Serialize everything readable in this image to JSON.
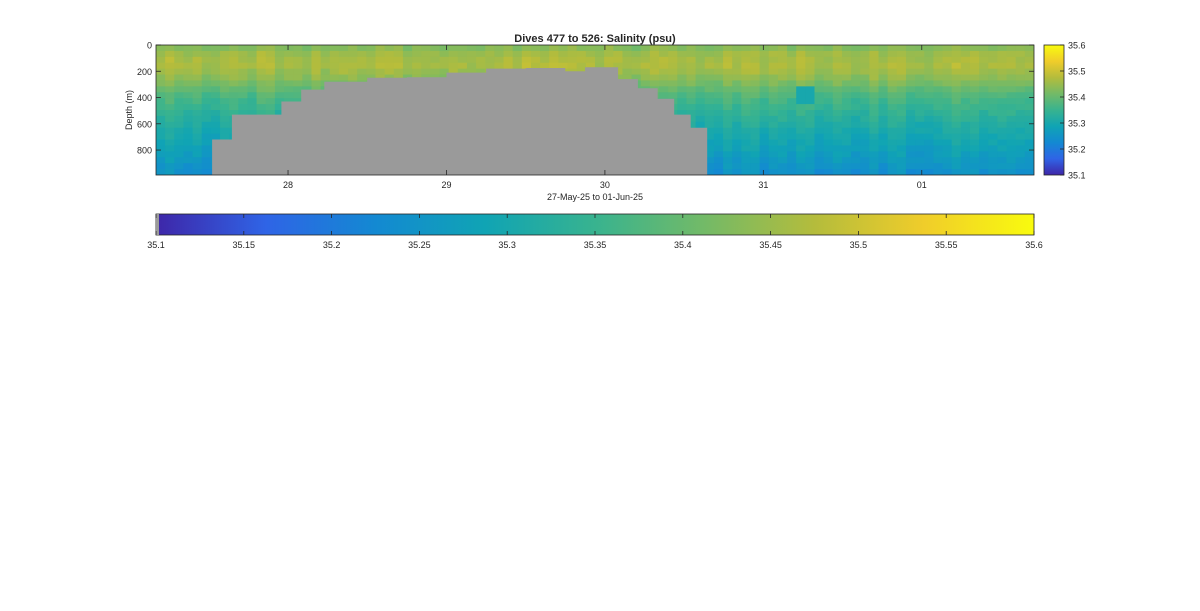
{
  "chart_data": {
    "type": "heatmap",
    "title": "Dives 477 to 526: Salinity (psu)",
    "xlabel": "27-May-25 to 01-Jun-25",
    "ylabel": "Depth (m)",
    "x_ticks": [
      "28",
      "29",
      "30",
      "31",
      "01"
    ],
    "y_ticks": [
      "0",
      "200",
      "400",
      "600",
      "800"
    ],
    "xlim": [
      "2025-05-27T04:00",
      "2025-06-01T17:00"
    ],
    "ylim": [
      0,
      990
    ],
    "y_reversed": true,
    "clim": [
      35.1,
      35.6
    ],
    "colorbar_right_ticks": [
      "35.1",
      "35.2",
      "35.3",
      "35.4",
      "35.5",
      "35.6"
    ],
    "colorbar_bottom_ticks": [
      "35.1",
      "35.15",
      "35.2",
      "35.25",
      "35.3",
      "35.35",
      "35.4",
      "35.45",
      "35.5",
      "35.55",
      "35.6"
    ],
    "colormap": [
      "#3e26a8",
      "#2f64e6",
      "#1389d2",
      "#10a4b4",
      "#38b38f",
      "#73ba67",
      "#b4bc3c",
      "#f0cd2a",
      "#f9fb0e"
    ],
    "missing_color": "#9a9a9a",
    "dive_max_depth_m": [
      {
        "x": "2025-05-27T04:00",
        "depth": 990
      },
      {
        "x": "2025-05-27T12:00",
        "depth": 990
      },
      {
        "x": "2025-05-27T12:30",
        "depth": 720
      },
      {
        "x": "2025-05-27T15:30",
        "depth": 530
      },
      {
        "x": "2025-05-27T23:00",
        "depth": 430
      },
      {
        "x": "2025-05-28T02:00",
        "depth": 340
      },
      {
        "x": "2025-05-28T05:30",
        "depth": 280
      },
      {
        "x": "2025-05-28T12:00",
        "depth": 250
      },
      {
        "x": "2025-05-28T18:00",
        "depth": 245
      },
      {
        "x": "2025-05-29T00:00",
        "depth": 210
      },
      {
        "x": "2025-05-29T06:00",
        "depth": 180
      },
      {
        "x": "2025-05-29T12:00",
        "depth": 175
      },
      {
        "x": "2025-05-29T18:00",
        "depth": 200
      },
      {
        "x": "2025-05-29T21:00",
        "depth": 170
      },
      {
        "x": "2025-05-30T02:00",
        "depth": 260
      },
      {
        "x": "2025-05-30T05:00",
        "depth": 330
      },
      {
        "x": "2025-05-30T08:00",
        "depth": 410
      },
      {
        "x": "2025-05-30T10:30",
        "depth": 530
      },
      {
        "x": "2025-05-30T13:00",
        "depth": 630
      },
      {
        "x": "2025-05-30T15:30",
        "depth": 990
      },
      {
        "x": "2025-06-01T17:00",
        "depth": 990
      }
    ],
    "salinity_profile_m_psu": [
      {
        "depth": 0,
        "salinity": 35.41
      },
      {
        "depth": 40,
        "salinity": 35.45
      },
      {
        "depth": 150,
        "salinity": 35.47
      },
      {
        "depth": 250,
        "salinity": 35.44
      },
      {
        "depth": 400,
        "salinity": 35.37
      },
      {
        "depth": 600,
        "salinity": 35.32
      },
      {
        "depth": 800,
        "salinity": 35.28
      },
      {
        "depth": 990,
        "salinity": 35.24
      }
    ],
    "low_salinity_feature": {
      "x": "2025-05-31T06:00",
      "depth_range": [
        300,
        450
      ],
      "salinity": 35.3
    }
  }
}
